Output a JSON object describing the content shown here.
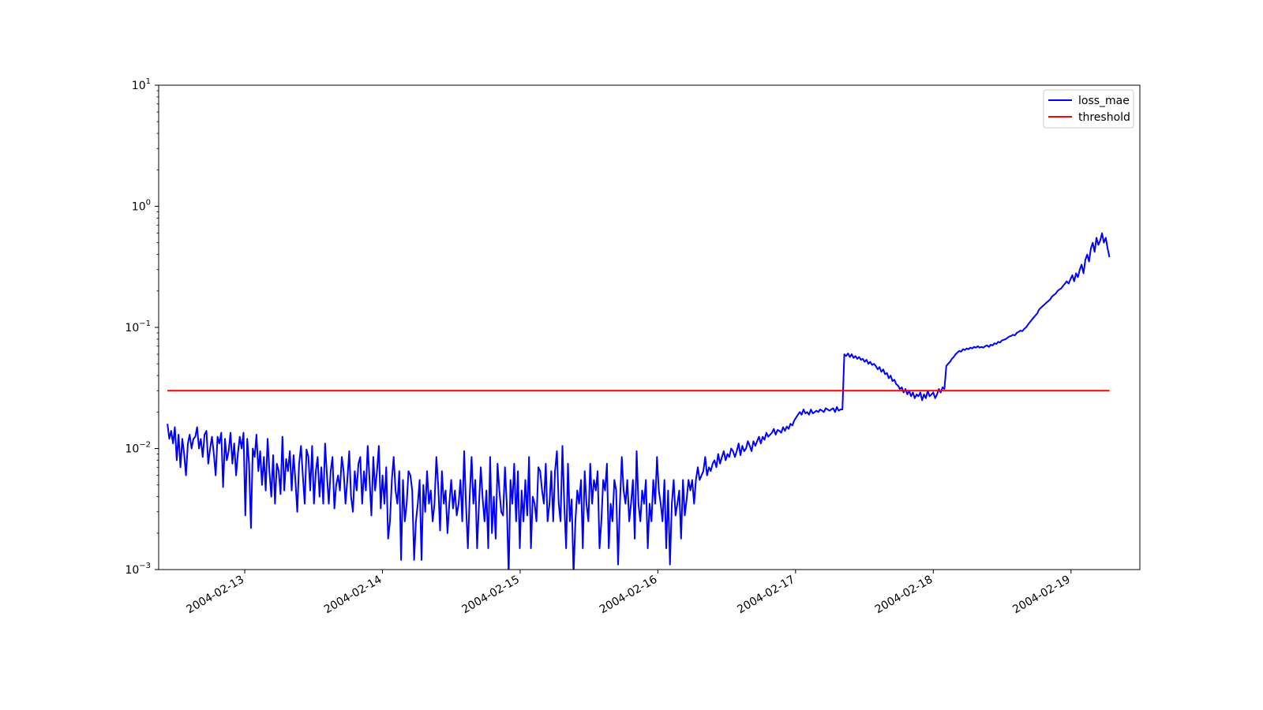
{
  "chart_data": {
    "type": "line",
    "title": "",
    "xlabel": "",
    "ylabel": "",
    "yscale": "log",
    "ylim": [
      0.001,
      10
    ],
    "xlim": [
      "2004-02-12 09:00",
      "2004-02-19 12:00"
    ],
    "grid": false,
    "legend_position": "top-right",
    "y_ticks": [
      {
        "base": "10",
        "exp": "1"
      },
      {
        "base": "10",
        "exp": "0"
      },
      {
        "base": "10",
        "exp": "−1"
      },
      {
        "base": "10",
        "exp": "−2"
      },
      {
        "base": "10",
        "exp": "−3"
      }
    ],
    "x_ticks": [
      "2004-02-13",
      "2004-02-14",
      "2004-02-15",
      "2004-02-16",
      "2004-02-17",
      "2004-02-18",
      "2004-02-19"
    ],
    "series": [
      {
        "name": "loss_mae",
        "color": "#0000ff",
        "x_start": "2004-02-12 10:32",
        "x_end": "2004-02-19 06:42",
        "values": [
          0.016,
          0.012,
          0.014,
          0.011,
          0.015,
          0.008,
          0.013,
          0.007,
          0.012,
          0.009,
          0.006,
          0.011,
          0.013,
          0.01,
          0.012,
          0.0125,
          0.015,
          0.01,
          0.012,
          0.0085,
          0.013,
          0.014,
          0.0075,
          0.01,
          0.0125,
          0.009,
          0.006,
          0.0125,
          0.011,
          0.0135,
          0.0048,
          0.012,
          0.008,
          0.0095,
          0.0135,
          0.0075,
          0.011,
          0.006,
          0.0092,
          0.0125,
          0.01,
          0.0135,
          0.0028,
          0.012,
          0.0075,
          0.0022,
          0.01,
          0.0085,
          0.013,
          0.0065,
          0.0095,
          0.005,
          0.0085,
          0.0045,
          0.012,
          0.0065,
          0.004,
          0.0088,
          0.0035,
          0.0075,
          0.0065,
          0.0042,
          0.0125,
          0.0045,
          0.0082,
          0.0065,
          0.0095,
          0.0045,
          0.0088,
          0.0055,
          0.003,
          0.0075,
          0.0105,
          0.006,
          0.0035,
          0.0098,
          0.0085,
          0.0045,
          0.0105,
          0.0035,
          0.0065,
          0.0085,
          0.004,
          0.007,
          0.0035,
          0.011,
          0.006,
          0.0035,
          0.0065,
          0.0085,
          0.0032,
          0.005,
          0.006,
          0.0045,
          0.0085,
          0.0065,
          0.0035,
          0.0055,
          0.0095,
          0.004,
          0.003,
          0.0065,
          0.0045,
          0.0075,
          0.0085,
          0.0035,
          0.0065,
          0.0045,
          0.0105,
          0.0055,
          0.0028,
          0.0085,
          0.0045,
          0.0065,
          0.0105,
          0.0032,
          0.006,
          0.0035,
          0.007,
          0.0018,
          0.0025,
          0.0055,
          0.0085,
          0.0045,
          0.0035,
          0.0065,
          0.0012,
          0.0055,
          0.0025,
          0.0035,
          0.0065,
          0.006,
          0.0045,
          0.0012,
          0.0025,
          0.0035,
          0.0055,
          0.0012,
          0.005,
          0.003,
          0.0065,
          0.0035,
          0.0045,
          0.0025,
          0.0035,
          0.0085,
          0.005,
          0.0021,
          0.0065,
          0.0035,
          0.0045,
          0.002,
          0.0035,
          0.0055,
          0.0032,
          0.0045,
          0.0028,
          0.0035,
          0.0055,
          0.0025,
          0.0095,
          0.0035,
          0.0015,
          0.004,
          0.0085,
          0.0035,
          0.0055,
          0.0015,
          0.0035,
          0.007,
          0.0038,
          0.0025,
          0.0045,
          0.0015,
          0.0085,
          0.002,
          0.004,
          0.0018,
          0.0075,
          0.0045,
          0.003,
          0.0028,
          0.007,
          0.0035,
          0.0009,
          0.0055,
          0.0035,
          0.0075,
          0.0025,
          0.0065,
          0.0015,
          0.0045,
          0.0025,
          0.0055,
          0.0028,
          0.0085,
          0.0015,
          0.004,
          0.0035,
          0.0025,
          0.007,
          0.0065,
          0.0045,
          0.0035,
          0.0075,
          0.0025,
          0.0035,
          0.0065,
          0.0025,
          0.0065,
          0.0095,
          0.0035,
          0.0025,
          0.0105,
          0.0035,
          0.0015,
          0.0075,
          0.0025,
          0.0038,
          0.0009,
          0.0025,
          0.0045,
          0.0035,
          0.0055,
          0.0015,
          0.0065,
          0.0035,
          0.0025,
          0.0075,
          0.0035,
          0.0055,
          0.0045,
          0.0065,
          0.0015,
          0.0025,
          0.0055,
          0.0045,
          0.0075,
          0.0015,
          0.0035,
          0.0025,
          0.0055,
          0.0045,
          0.0011,
          0.0035,
          0.0085,
          0.0045,
          0.0035,
          0.0055,
          0.0025,
          0.0035,
          0.0055,
          0.0018,
          0.0095,
          0.0035,
          0.0025,
          0.0045,
          0.0035,
          0.0055,
          0.0015,
          0.0035,
          0.0025,
          0.0055,
          0.0035,
          0.0085,
          0.0045,
          0.0035,
          0.0025,
          0.0055,
          0.0015,
          0.0045,
          0.0011,
          0.0035,
          0.0055,
          0.0028,
          0.0035,
          0.0045,
          0.0018,
          0.0055,
          0.0028,
          0.0038,
          0.0055,
          0.0045,
          0.0055,
          0.0035,
          0.0055,
          0.007,
          0.0055,
          0.006,
          0.0065,
          0.0085,
          0.006,
          0.007,
          0.0065,
          0.0075,
          0.008,
          0.007,
          0.009,
          0.0075,
          0.0085,
          0.0095,
          0.008,
          0.009,
          0.0085,
          0.01,
          0.0095,
          0.0085,
          0.0095,
          0.011,
          0.0088,
          0.0105,
          0.0095,
          0.01,
          0.0115,
          0.0105,
          0.0095,
          0.0115,
          0.0105,
          0.0115,
          0.0125,
          0.011,
          0.0125,
          0.0118,
          0.0135,
          0.0125,
          0.013,
          0.0135,
          0.0145,
          0.013,
          0.0142,
          0.014,
          0.0135,
          0.015,
          0.014,
          0.0152,
          0.0145,
          0.016,
          0.0155,
          0.017,
          0.018,
          0.019,
          0.02,
          0.019,
          0.021,
          0.0195,
          0.02,
          0.019,
          0.021,
          0.0195,
          0.02,
          0.0205,
          0.02,
          0.021,
          0.0205,
          0.02,
          0.0215,
          0.021,
          0.0205,
          0.021,
          0.0215,
          0.02,
          0.022,
          0.0205,
          0.021,
          0.021,
          0.06,
          0.058,
          0.061,
          0.057,
          0.06,
          0.056,
          0.058,
          0.055,
          0.057,
          0.054,
          0.055,
          0.052,
          0.054,
          0.05,
          0.052,
          0.049,
          0.05,
          0.048,
          0.045,
          0.047,
          0.043,
          0.045,
          0.041,
          0.042,
          0.038,
          0.04,
          0.036,
          0.037,
          0.034,
          0.033,
          0.031,
          0.032,
          0.029,
          0.031,
          0.028,
          0.03,
          0.027,
          0.029,
          0.026,
          0.028,
          0.027,
          0.029,
          0.025,
          0.028,
          0.026,
          0.03,
          0.027,
          0.028,
          0.029,
          0.026,
          0.028,
          0.031,
          0.029,
          0.032,
          0.031,
          0.048,
          0.05,
          0.052,
          0.055,
          0.057,
          0.06,
          0.062,
          0.064,
          0.063,
          0.066,
          0.065,
          0.067,
          0.066,
          0.068,
          0.067,
          0.069,
          0.068,
          0.07,
          0.068,
          0.069,
          0.068,
          0.07,
          0.071,
          0.069,
          0.072,
          0.071,
          0.074,
          0.073,
          0.076,
          0.075,
          0.078,
          0.079,
          0.08,
          0.082,
          0.084,
          0.085,
          0.087,
          0.086,
          0.09,
          0.092,
          0.094,
          0.093,
          0.097,
          0.1,
          0.105,
          0.11,
          0.115,
          0.12,
          0.125,
          0.13,
          0.14,
          0.145,
          0.15,
          0.155,
          0.16,
          0.165,
          0.17,
          0.18,
          0.185,
          0.19,
          0.2,
          0.205,
          0.21,
          0.22,
          0.23,
          0.24,
          0.23,
          0.25,
          0.27,
          0.24,
          0.28,
          0.26,
          0.3,
          0.33,
          0.28,
          0.36,
          0.4,
          0.35,
          0.45,
          0.5,
          0.42,
          0.55,
          0.48,
          0.52,
          0.6,
          0.5,
          0.55,
          0.45,
          0.38
        ]
      },
      {
        "name": "threshold",
        "color": "#ff0000",
        "x_start": "2004-02-12 10:32",
        "x_end": "2004-02-19 06:42",
        "values": [
          0.03,
          0.03
        ]
      }
    ]
  }
}
